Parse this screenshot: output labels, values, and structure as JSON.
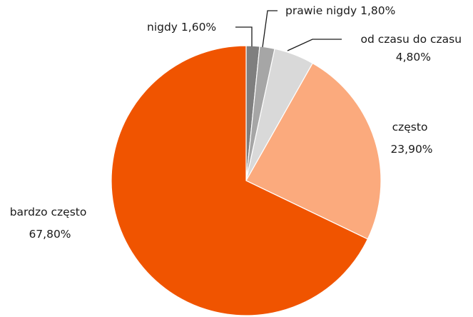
{
  "chart_data": {
    "type": "pie",
    "start_angle_deg": 0,
    "direction": "clockwise",
    "slices": [
      {
        "name": "nigdy",
        "value": 1.6,
        "label": "1,60%",
        "color": "#7f7f7f"
      },
      {
        "name": "prawie nigdy",
        "value": 1.8,
        "label": "1,80%",
        "color": "#a6a6a6"
      },
      {
        "name": "od czasu do czasu",
        "value": 4.8,
        "label": "4,80%",
        "color": "#d9d9d9"
      },
      {
        "name": "często",
        "value": 23.9,
        "label": "23,90%",
        "color": "#fbaa7d"
      },
      {
        "name": "bardzo często",
        "value": 67.8,
        "label": "67,80%",
        "color": "#f05400"
      }
    ]
  }
}
